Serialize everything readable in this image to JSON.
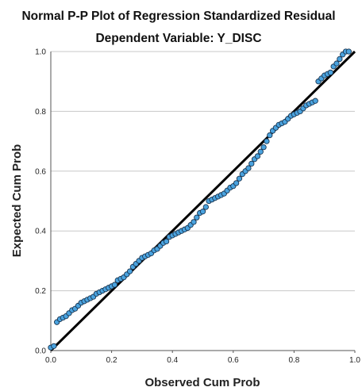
{
  "chart_data": {
    "type": "scatter",
    "title": "Normal P-P Plot of Regression Standardized Residual",
    "subtitle": "Dependent Variable: Y_DISC",
    "xlabel": "Observed Cum Prob",
    "ylabel": "Expected Cum Prob",
    "xlim": [
      0.0,
      1.0
    ],
    "ylim": [
      0.0,
      1.0
    ],
    "xticks": [
      "0.0",
      "0.2",
      "0.4",
      "0.6",
      "0.8",
      "1.0"
    ],
    "yticks": [
      "0.0",
      "0.2",
      "0.4",
      "0.6",
      "0.8",
      "1.0"
    ],
    "grid": "horizontal",
    "reference_line": {
      "x": [
        0.0,
        1.0
      ],
      "y": [
        0.0,
        1.0
      ],
      "color": "#000000"
    },
    "marker_color": "#4aa3df",
    "marker_edge_color": "#1a3550",
    "points": [
      [
        0.0,
        0.01
      ],
      [
        0.01,
        0.015
      ],
      [
        0.02,
        0.095
      ],
      [
        0.03,
        0.105
      ],
      [
        0.04,
        0.11
      ],
      [
        0.05,
        0.115
      ],
      [
        0.06,
        0.125
      ],
      [
        0.07,
        0.135
      ],
      [
        0.08,
        0.14
      ],
      [
        0.09,
        0.15
      ],
      [
        0.1,
        0.16
      ],
      [
        0.11,
        0.165
      ],
      [
        0.12,
        0.17
      ],
      [
        0.13,
        0.175
      ],
      [
        0.14,
        0.18
      ],
      [
        0.15,
        0.19
      ],
      [
        0.16,
        0.195
      ],
      [
        0.17,
        0.2
      ],
      [
        0.18,
        0.205
      ],
      [
        0.19,
        0.21
      ],
      [
        0.2,
        0.215
      ],
      [
        0.21,
        0.22
      ],
      [
        0.22,
        0.235
      ],
      [
        0.23,
        0.24
      ],
      [
        0.24,
        0.245
      ],
      [
        0.25,
        0.255
      ],
      [
        0.26,
        0.265
      ],
      [
        0.27,
        0.28
      ],
      [
        0.28,
        0.29
      ],
      [
        0.29,
        0.3
      ],
      [
        0.3,
        0.31
      ],
      [
        0.31,
        0.315
      ],
      [
        0.32,
        0.32
      ],
      [
        0.33,
        0.325
      ],
      [
        0.34,
        0.335
      ],
      [
        0.35,
        0.34
      ],
      [
        0.36,
        0.35
      ],
      [
        0.37,
        0.36
      ],
      [
        0.38,
        0.365
      ],
      [
        0.39,
        0.38
      ],
      [
        0.4,
        0.385
      ],
      [
        0.41,
        0.39
      ],
      [
        0.42,
        0.395
      ],
      [
        0.43,
        0.4
      ],
      [
        0.44,
        0.405
      ],
      [
        0.45,
        0.41
      ],
      [
        0.46,
        0.42
      ],
      [
        0.47,
        0.43
      ],
      [
        0.48,
        0.445
      ],
      [
        0.49,
        0.46
      ],
      [
        0.5,
        0.465
      ],
      [
        0.51,
        0.48
      ],
      [
        0.52,
        0.5
      ],
      [
        0.53,
        0.505
      ],
      [
        0.54,
        0.51
      ],
      [
        0.55,
        0.515
      ],
      [
        0.56,
        0.52
      ],
      [
        0.57,
        0.525
      ],
      [
        0.58,
        0.535
      ],
      [
        0.59,
        0.545
      ],
      [
        0.6,
        0.55
      ],
      [
        0.61,
        0.56
      ],
      [
        0.62,
        0.575
      ],
      [
        0.63,
        0.59
      ],
      [
        0.64,
        0.6
      ],
      [
        0.65,
        0.61
      ],
      [
        0.66,
        0.625
      ],
      [
        0.67,
        0.64
      ],
      [
        0.68,
        0.65
      ],
      [
        0.69,
        0.665
      ],
      [
        0.7,
        0.68
      ],
      [
        0.71,
        0.7
      ],
      [
        0.72,
        0.72
      ],
      [
        0.73,
        0.735
      ],
      [
        0.74,
        0.745
      ],
      [
        0.75,
        0.755
      ],
      [
        0.76,
        0.76
      ],
      [
        0.77,
        0.765
      ],
      [
        0.78,
        0.775
      ],
      [
        0.79,
        0.785
      ],
      [
        0.8,
        0.79
      ],
      [
        0.81,
        0.795
      ],
      [
        0.82,
        0.8
      ],
      [
        0.83,
        0.81
      ],
      [
        0.84,
        0.82
      ],
      [
        0.85,
        0.825
      ],
      [
        0.86,
        0.83
      ],
      [
        0.87,
        0.835
      ],
      [
        0.88,
        0.9
      ],
      [
        0.89,
        0.91
      ],
      [
        0.9,
        0.92
      ],
      [
        0.91,
        0.925
      ],
      [
        0.92,
        0.93
      ],
      [
        0.93,
        0.95
      ],
      [
        0.94,
        0.96
      ],
      [
        0.95,
        0.975
      ],
      [
        0.96,
        0.99
      ],
      [
        0.97,
        1.0
      ],
      [
        0.98,
        1.0
      ]
    ]
  }
}
